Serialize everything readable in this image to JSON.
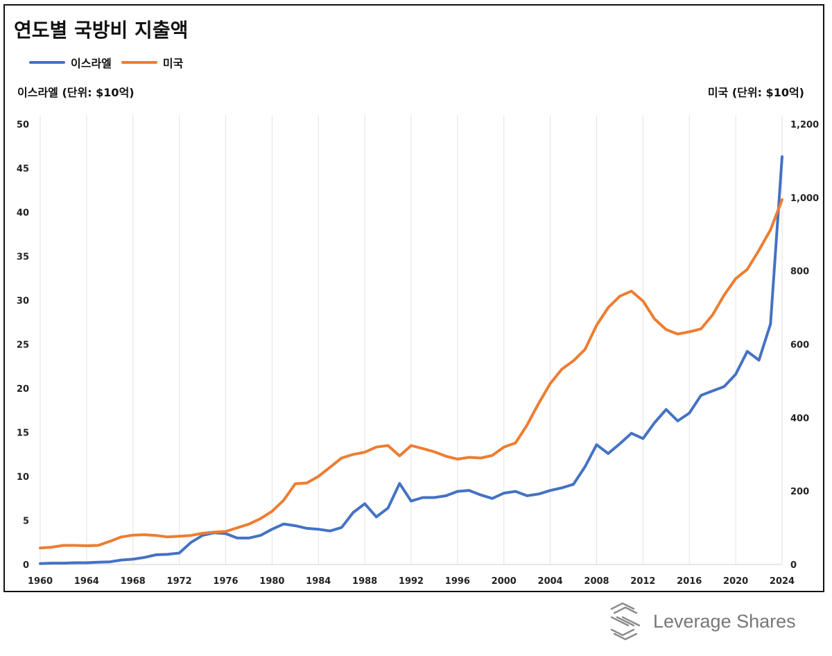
{
  "title": "연도별 국방비 지출액",
  "legend": [
    {
      "label": "이스라엘",
      "color": "#4472c4"
    },
    {
      "label": "미국",
      "color": "#ed7d31"
    }
  ],
  "left_axis_title": "이스라엘 (단위: $10억)",
  "right_axis_title": "미국 (단위: $10억)",
  "logo": {
    "text": "Leverage Shares",
    "icon": "leverage-shares-logo-icon"
  },
  "chart_data": {
    "type": "line",
    "title": "연도별 국방비 지출액",
    "x": [
      1960,
      1961,
      1962,
      1963,
      1964,
      1965,
      1966,
      1967,
      1968,
      1969,
      1970,
      1971,
      1972,
      1973,
      1974,
      1975,
      1976,
      1977,
      1978,
      1979,
      1980,
      1981,
      1982,
      1983,
      1984,
      1985,
      1986,
      1987,
      1988,
      1989,
      1990,
      1991,
      1992,
      1993,
      1994,
      1995,
      1996,
      1997,
      1998,
      1999,
      2000,
      2001,
      2002,
      2003,
      2004,
      2005,
      2006,
      2007,
      2008,
      2009,
      2010,
      2011,
      2012,
      2013,
      2014,
      2015,
      2016,
      2017,
      2018,
      2019,
      2020,
      2021,
      2022,
      2023,
      2024
    ],
    "xticks": [
      "1960",
      "1964",
      "1968",
      "1972",
      "1976",
      "1980",
      "1984",
      "1988",
      "1992",
      "1996",
      "2000",
      "2004",
      "2008",
      "2012",
      "2016",
      "2020",
      "2024"
    ],
    "yticks_left": [
      "0",
      "5",
      "10",
      "15",
      "20",
      "25",
      "30",
      "35",
      "40",
      "45",
      "50"
    ],
    "yticks_right": [
      "0",
      "200",
      "400",
      "600",
      "800",
      "1,000",
      "1,200"
    ],
    "ylim_left": [
      0,
      50
    ],
    "ylim_right": [
      0,
      1200
    ],
    "grid": "vertical",
    "legend_position": "top-left",
    "series": [
      {
        "name": "이스라엘",
        "axis": "left",
        "color": "#4472c4",
        "values": [
          0.1,
          0.15,
          0.15,
          0.2,
          0.2,
          0.25,
          0.3,
          0.5,
          0.6,
          0.8,
          1.1,
          1.15,
          1.3,
          2.5,
          3.3,
          3.6,
          3.5,
          3.0,
          3.0,
          3.3,
          4.0,
          4.6,
          4.4,
          4.1,
          4.0,
          3.8,
          4.2,
          5.9,
          6.9,
          5.4,
          6.4,
          9.2,
          7.2,
          7.6,
          7.6,
          7.8,
          8.3,
          8.4,
          7.9,
          7.5,
          8.1,
          8.3,
          7.8,
          8.0,
          8.4,
          8.7,
          9.1,
          11.1,
          13.6,
          12.6,
          13.7,
          14.9,
          14.3,
          16.1,
          17.6,
          16.3,
          17.2,
          19.2,
          19.7,
          20.2,
          21.6,
          24.2,
          23.2,
          27.3,
          46.3
        ]
      },
      {
        "name": "미국",
        "axis": "right",
        "color": "#ed7d31",
        "values": [
          45,
          47,
          52,
          52,
          51,
          52,
          63,
          75,
          80,
          81,
          79,
          75,
          77,
          79,
          85,
          88,
          90,
          100,
          110,
          125,
          145,
          175,
          220,
          222,
          240,
          265,
          290,
          300,
          306,
          320,
          324,
          296,
          324,
          316,
          307,
          295,
          287,
          292,
          290,
          297,
          320,
          331,
          380,
          439,
          493,
          532,
          555,
          586,
          652,
          700,
          731,
          745,
          718,
          669,
          640,
          628,
          634,
          642,
          680,
          734,
          779,
          804,
          856,
          912,
          994
        ]
      }
    ]
  }
}
